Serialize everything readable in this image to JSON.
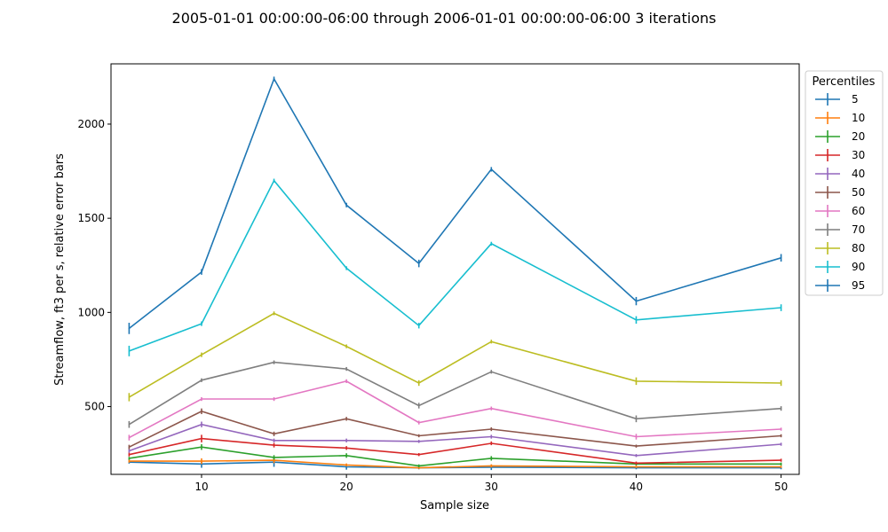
{
  "chart_data": {
    "type": "line",
    "title": "2005-01-01 00:00:00-06:00 through 2006-01-01 00:00:00-06:00 3 iterations",
    "xlabel": "Sample size",
    "ylabel": "Streamflow, ft3 per s, relative error bars",
    "xlim": [
      3.75,
      51.25
    ],
    "ylim": [
      140,
      2320
    ],
    "xticks": [
      10,
      20,
      30,
      40,
      50
    ],
    "yticks": [
      500,
      1000,
      1500,
      2000
    ],
    "grid": false,
    "legend": {
      "title": "Percentiles",
      "placement": "outside-right"
    },
    "x": [
      5,
      10,
      15,
      20,
      25,
      30,
      40,
      50
    ],
    "series": [
      {
        "name": "5",
        "color": "#1f77b4",
        "values": [
          205,
          195,
          205,
          180,
          175,
          178,
          175,
          175
        ],
        "errors": [
          8,
          20,
          25,
          15,
          8,
          15,
          8,
          8
        ]
      },
      {
        "name": "10",
        "color": "#ff7f0e",
        "values": [
          210,
          210,
          215,
          190,
          175,
          185,
          180,
          180
        ],
        "errors": [
          8,
          15,
          15,
          8,
          6,
          8,
          6,
          6
        ]
      },
      {
        "name": "20",
        "color": "#2ca02c",
        "values": [
          225,
          285,
          230,
          240,
          185,
          225,
          195,
          195
        ],
        "errors": [
          8,
          15,
          12,
          12,
          8,
          12,
          8,
          8
        ]
      },
      {
        "name": "30",
        "color": "#d62728",
        "values": [
          245,
          330,
          295,
          280,
          245,
          305,
          200,
          215
        ],
        "errors": [
          10,
          20,
          12,
          10,
          8,
          10,
          8,
          8
        ]
      },
      {
        "name": "40",
        "color": "#9467bd",
        "values": [
          265,
          405,
          320,
          320,
          315,
          340,
          240,
          300
        ],
        "errors": [
          10,
          15,
          10,
          10,
          8,
          10,
          8,
          8
        ]
      },
      {
        "name": "50",
        "color": "#8c564b",
        "values": [
          285,
          475,
          355,
          435,
          345,
          380,
          290,
          345
        ],
        "errors": [
          12,
          15,
          12,
          10,
          8,
          10,
          8,
          8
        ]
      },
      {
        "name": "60",
        "color": "#e377c2",
        "values": [
          335,
          540,
          540,
          635,
          415,
          490,
          340,
          380
        ],
        "errors": [
          15,
          10,
          10,
          10,
          10,
          10,
          15,
          8
        ]
      },
      {
        "name": "70",
        "color": "#7f7f7f",
        "values": [
          405,
          640,
          735,
          700,
          505,
          685,
          435,
          490
        ],
        "errors": [
          18,
          10,
          10,
          10,
          15,
          10,
          18,
          12
        ]
      },
      {
        "name": "80",
        "color": "#bcbd22",
        "values": [
          550,
          775,
          995,
          820,
          625,
          845,
          635,
          625
        ],
        "errors": [
          22,
          12,
          10,
          10,
          15,
          10,
          20,
          15
        ]
      },
      {
        "name": "90",
        "color": "#17becf",
        "values": [
          795,
          940,
          1700,
          1235,
          930,
          1365,
          960,
          1025
        ],
        "errors": [
          28,
          12,
          10,
          10,
          15,
          10,
          20,
          18
        ]
      },
      {
        "name": "95",
        "color": "#1f77b4",
        "values": [
          915,
          1215,
          2240,
          1570,
          1260,
          1760,
          1060,
          1290
        ],
        "errors": [
          30,
          15,
          12,
          12,
          20,
          12,
          22,
          20
        ]
      }
    ]
  }
}
